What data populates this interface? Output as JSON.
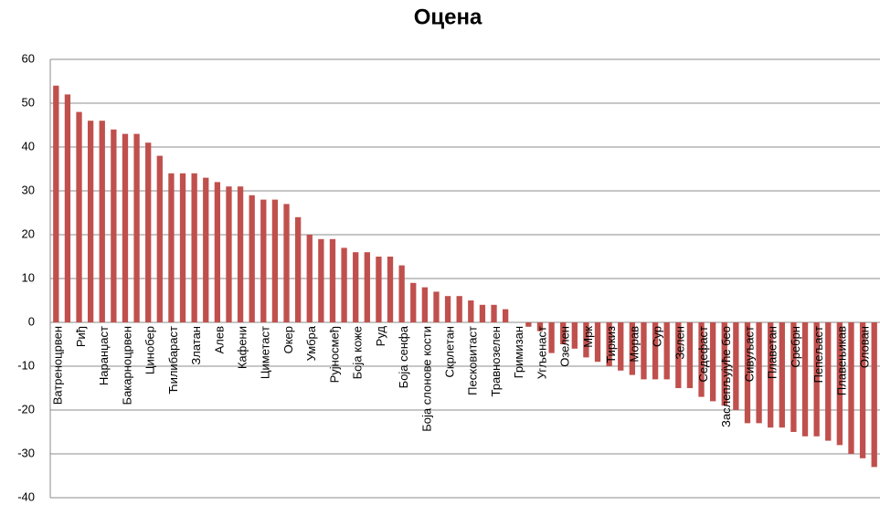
{
  "chart_data": {
    "type": "bar",
    "title": "Оцена",
    "categories": [
      "Ватреноцрвен",
      null,
      "Риђ",
      null,
      "Наранџаст",
      null,
      "Бакарноцрвен",
      null,
      "Цинобер",
      null,
      "Ћилибараст",
      null,
      "Златан",
      null,
      "Алев",
      null,
      "Кафени",
      null,
      "Циметаст",
      null,
      "Окер",
      null,
      "Умбра",
      null,
      "Рујносмеђ",
      null,
      "Боја коже",
      null,
      "Руд",
      null,
      "Боја сенфа",
      null,
      "Боја слонове кости",
      null,
      "Скрлетан",
      null,
      "Песковитаст",
      null,
      "Травнозелен",
      null,
      "Гримизан",
      null,
      "Угљенаст",
      null,
      "Озелен",
      null,
      "Мрк",
      null,
      "Тиркиз",
      null,
      "Морав",
      null,
      "Сур",
      null,
      "Зелен",
      null,
      "Седефаст",
      null,
      "Заслепљујуће бео",
      null,
      "Сивуљаст",
      null,
      "Плаветан",
      null,
      "Сребрн",
      null,
      "Пепељаст",
      null,
      "Плавењикав",
      null,
      "Олован",
      null
    ],
    "values": [
      54,
      52,
      48,
      46,
      46,
      44,
      43,
      43,
      41,
      38,
      34,
      34,
      34,
      33,
      32,
      31,
      31,
      29,
      28,
      28,
      27,
      24,
      20,
      19,
      19,
      17,
      16,
      16,
      15,
      15,
      13,
      9,
      8,
      7,
      6,
      6,
      5,
      4,
      4,
      3,
      0,
      -1,
      -2,
      -7,
      -5,
      -6,
      -8,
      -9,
      -10,
      -11,
      -12,
      -13,
      -13,
      -13,
      -15,
      -15,
      -17,
      -18,
      -19,
      -20,
      -23,
      -23,
      -24,
      -24,
      -25,
      -26,
      -26,
      -27,
      -28,
      -30,
      -31,
      -33
    ],
    "color": "#c0504d",
    "ylim": [
      -40,
      60
    ],
    "yticks": [
      -40,
      -30,
      -20,
      -10,
      0,
      10,
      20,
      30,
      40,
      50,
      60
    ],
    "grid": true
  }
}
